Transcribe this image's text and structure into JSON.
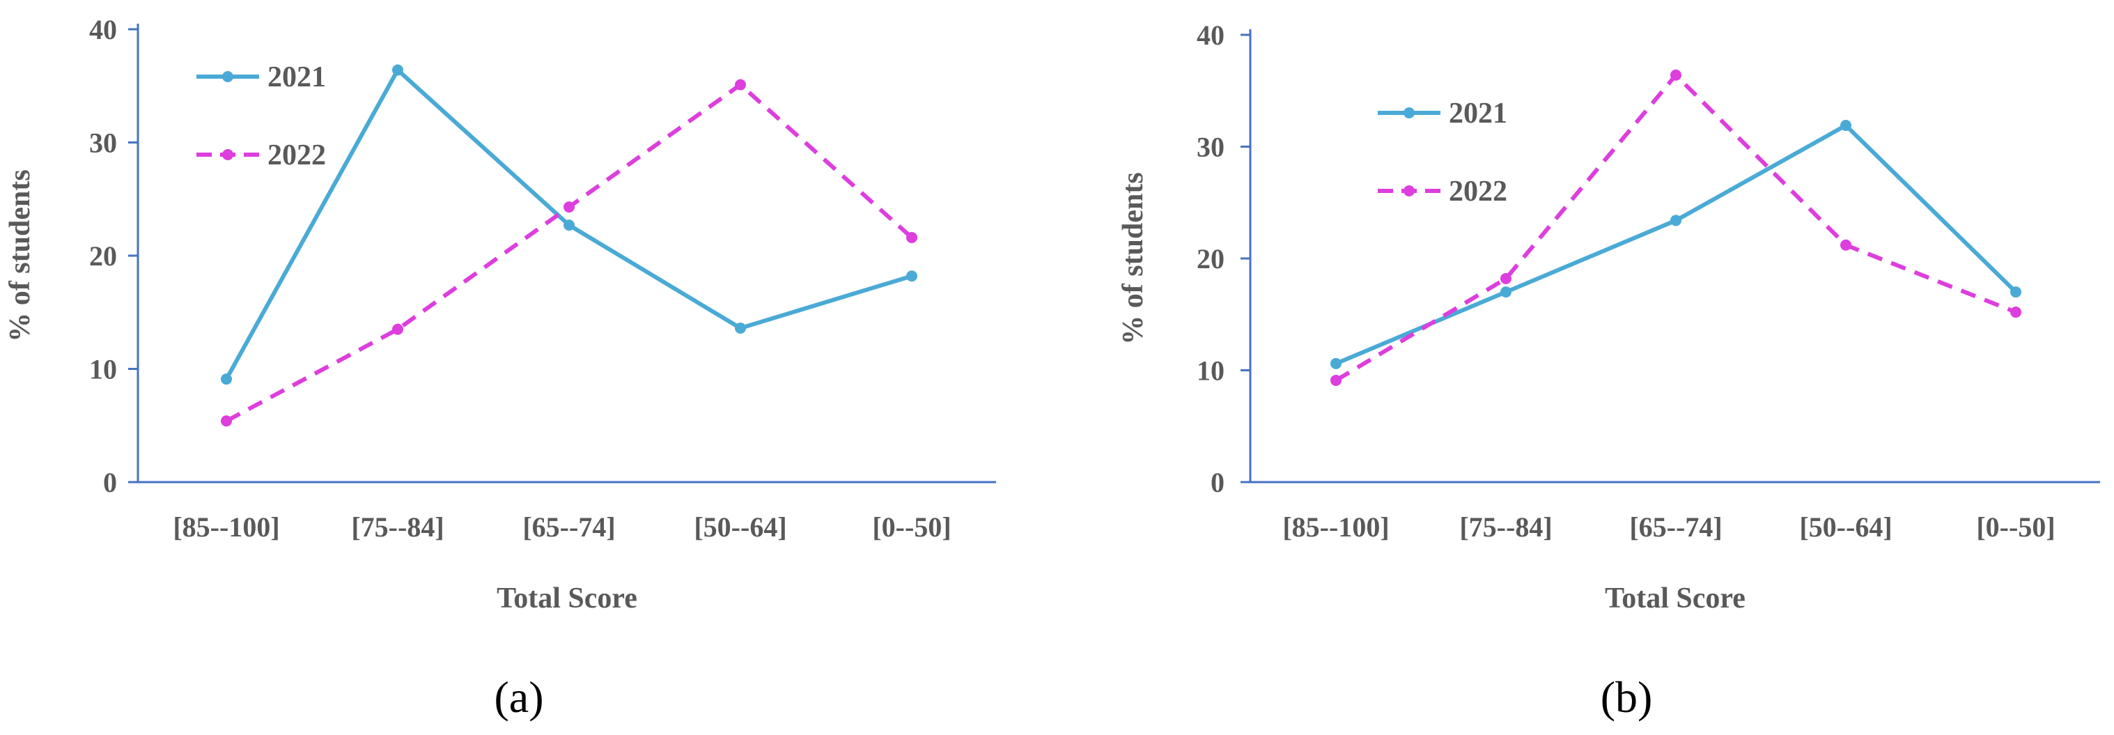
{
  "figure": {
    "panel_captions": [
      "(a)",
      "(b)"
    ]
  },
  "colors": {
    "series_2021": "#4aaad6",
    "series_2022": "#dd3edd",
    "axis": "#4472c4",
    "text": "#595959"
  },
  "chart_data": [
    {
      "type": "line",
      "caption": "(a)",
      "title": "",
      "xlabel": "Total Score",
      "ylabel": "% of students",
      "categories": [
        "[85--100]",
        "[75--84]",
        "[65--74]",
        "[50--64]",
        "[0--50]"
      ],
      "ylim": [
        0,
        40
      ],
      "yticks": [
        0,
        10,
        20,
        30,
        40
      ],
      "grid": false,
      "legend_placement": "top-left",
      "series": [
        {
          "name": "2021",
          "style": "solid",
          "values": [
            9.1,
            36.4,
            22.7,
            13.6,
            18.2
          ]
        },
        {
          "name": "2022",
          "style": "dashed",
          "values": [
            5.4,
            13.5,
            24.3,
            35.1,
            21.6
          ]
        }
      ]
    },
    {
      "type": "line",
      "caption": "(b)",
      "title": "",
      "xlabel": "Total Score",
      "ylabel": "% of students",
      "categories": [
        "[85--100]",
        "[75--84]",
        "[65--74]",
        "[50--64]",
        "[0--50]"
      ],
      "ylim": [
        0,
        40
      ],
      "yticks": [
        0,
        10,
        20,
        30,
        40
      ],
      "grid": false,
      "legend_placement": "top-left",
      "series": [
        {
          "name": "2021",
          "style": "solid",
          "values": [
            10.6,
            17.0,
            23.4,
            31.9,
            17.0
          ]
        },
        {
          "name": "2022",
          "style": "dashed",
          "values": [
            9.1,
            18.2,
            36.4,
            21.2,
            15.2
          ]
        }
      ]
    }
  ]
}
